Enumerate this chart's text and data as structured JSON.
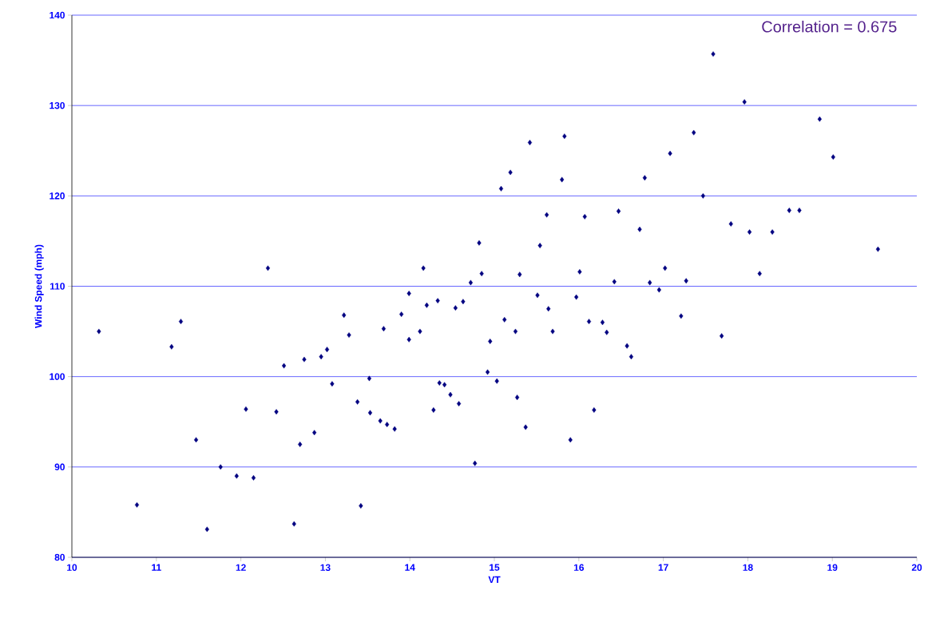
{
  "chart_data": {
    "type": "scatter",
    "xlabel": "VT",
    "ylabel": "Wind Speed (mph)",
    "annotations": [
      "Correlation = 0.675"
    ],
    "xlim": [
      10,
      20
    ],
    "ylim": [
      80,
      140
    ],
    "xticks": [
      10,
      11,
      12,
      13,
      14,
      15,
      16,
      17,
      18,
      19,
      20
    ],
    "yticks": [
      80,
      90,
      100,
      110,
      120,
      130,
      140
    ],
    "grid": "y",
    "marker": "diamond",
    "series": [
      {
        "color": "#000080",
        "x": [
          10.32,
          10.77,
          11.18,
          11.29,
          11.47,
          11.6,
          11.76,
          11.95,
          12.06,
          12.15,
          12.32,
          12.42,
          12.51,
          12.63,
          12.7,
          12.75,
          12.87,
          12.95,
          13.02,
          13.08,
          13.22,
          13.28,
          13.38,
          13.42,
          13.52,
          13.53,
          13.65,
          13.69,
          13.73,
          13.82,
          13.9,
          13.99,
          13.99,
          14.12,
          14.16,
          14.2,
          14.28,
          14.33,
          14.35,
          14.41,
          14.48,
          14.54,
          14.58,
          14.63,
          14.72,
          14.77,
          14.82,
          14.85,
          14.92,
          14.95,
          15.03,
          15.08,
          15.12,
          15.19,
          15.25,
          15.27,
          15.3,
          15.37,
          15.42,
          15.51,
          15.54,
          15.62,
          15.64,
          15.69,
          15.8,
          15.83,
          15.9,
          15.97,
          16.01,
          16.07,
          16.12,
          16.18,
          16.28,
          16.33,
          16.42,
          16.47,
          16.57,
          16.62,
          16.72,
          16.78,
          16.84,
          16.95,
          17.02,
          17.08,
          17.21,
          17.27,
          17.36,
          17.47,
          17.59,
          17.69,
          17.8,
          17.96,
          18.02,
          18.14,
          18.29,
          18.49,
          18.61,
          18.85,
          19.01,
          19.54
        ],
        "values": [
          105.0,
          85.8,
          103.3,
          106.1,
          93.0,
          83.1,
          90.0,
          89.0,
          96.4,
          88.8,
          112.0,
          96.1,
          101.2,
          83.7,
          92.5,
          101.9,
          93.8,
          102.2,
          103.0,
          99.2,
          106.8,
          104.6,
          97.2,
          85.7,
          99.8,
          96.0,
          95.1,
          105.3,
          94.7,
          94.2,
          106.9,
          109.2,
          104.1,
          105.0,
          112.0,
          107.9,
          96.3,
          108.4,
          99.3,
          99.1,
          98.0,
          107.6,
          97.0,
          108.3,
          110.4,
          90.4,
          114.8,
          111.4,
          100.5,
          103.9,
          99.5,
          120.8,
          106.3,
          122.6,
          105.0,
          97.7,
          111.3,
          94.4,
          125.9,
          109.0,
          114.5,
          117.9,
          107.5,
          105.0,
          121.8,
          126.6,
          93.0,
          108.8,
          111.6,
          117.7,
          106.1,
          96.3,
          106.0,
          104.9,
          110.5,
          118.3,
          103.4,
          102.2,
          116.3,
          122.0,
          110.4,
          109.6,
          112.0,
          124.7,
          106.7,
          110.6,
          127.0,
          120.0,
          135.7,
          104.5,
          116.9,
          130.4,
          116.0,
          111.4,
          116.0,
          118.4,
          118.4,
          128.5,
          124.3,
          114.1
        ]
      }
    ]
  }
}
